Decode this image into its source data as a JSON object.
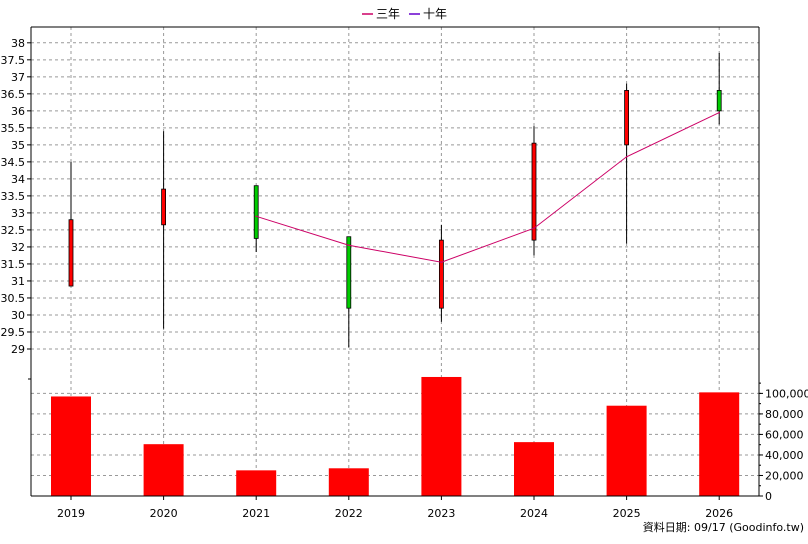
{
  "chart_data": {
    "type": "candlestick",
    "categories": [
      "2019",
      "2020",
      "2021",
      "2022",
      "2023",
      "2024",
      "2025",
      "2026"
    ],
    "legend": [
      {
        "name": "三年",
        "color": "#cc0066"
      },
      {
        "name": "十年",
        "color": "#6600cc"
      }
    ],
    "price_axis": {
      "ylim": [
        28.5,
        38.2
      ],
      "ticks": [
        "29",
        "29.5",
        "30",
        "30.5",
        "31",
        "31.5",
        "32",
        "32.5",
        "33",
        "33.5",
        "34",
        "34.5",
        "35",
        "35.5",
        "36",
        "36.5",
        "37",
        "37.5",
        "38"
      ]
    },
    "candles": [
      {
        "x": "2019",
        "open": 30.85,
        "high": 34.5,
        "low": 30.85,
        "close": 32.8
      },
      {
        "x": "2020",
        "open": 32.65,
        "high": 35.4,
        "low": 29.6,
        "close": 33.7
      },
      {
        "x": "2021",
        "open": 33.8,
        "high": 33.8,
        "low": 31.85,
        "close": 32.25
      },
      {
        "x": "2022",
        "open": 32.3,
        "high": 32.3,
        "low": 29.05,
        "close": 30.2
      },
      {
        "x": "2023",
        "open": 30.2,
        "high": 32.65,
        "low": 29.8,
        "close": 32.2
      },
      {
        "x": "2024",
        "open": 32.2,
        "high": 35.55,
        "low": 31.75,
        "close": 35.05
      },
      {
        "x": "2025",
        "open": 35.0,
        "high": 36.8,
        "low": 32.1,
        "close": 36.6
      },
      {
        "x": "2026",
        "open": 36.6,
        "high": 37.7,
        "low": 35.6,
        "close": 36.0
      }
    ],
    "series": [
      {
        "name": "三年",
        "x": [
          "2021",
          "2022",
          "2023",
          "2024",
          "2025",
          "2026"
        ],
        "values": [
          32.9,
          32.05,
          31.55,
          32.55,
          34.65,
          35.95
        ]
      }
    ],
    "volume_axis": {
      "ylim": [
        0,
        115000
      ],
      "ticks": [
        "0",
        "20,000",
        "40,000",
        "60,000",
        "80,000",
        "100,000"
      ]
    },
    "volume": {
      "values": [
        97000,
        50500,
        25000,
        27000,
        116000,
        52500,
        88000,
        101000
      ],
      "color": "#ff0000"
    },
    "colors": {
      "up": "#ff0000",
      "down": "#00cc00",
      "grid": "#999999"
    },
    "grid": true,
    "legend_position": "top-center"
  },
  "footer": {
    "source": "資料日期: 09/17 (Goodinfo.tw)"
  }
}
